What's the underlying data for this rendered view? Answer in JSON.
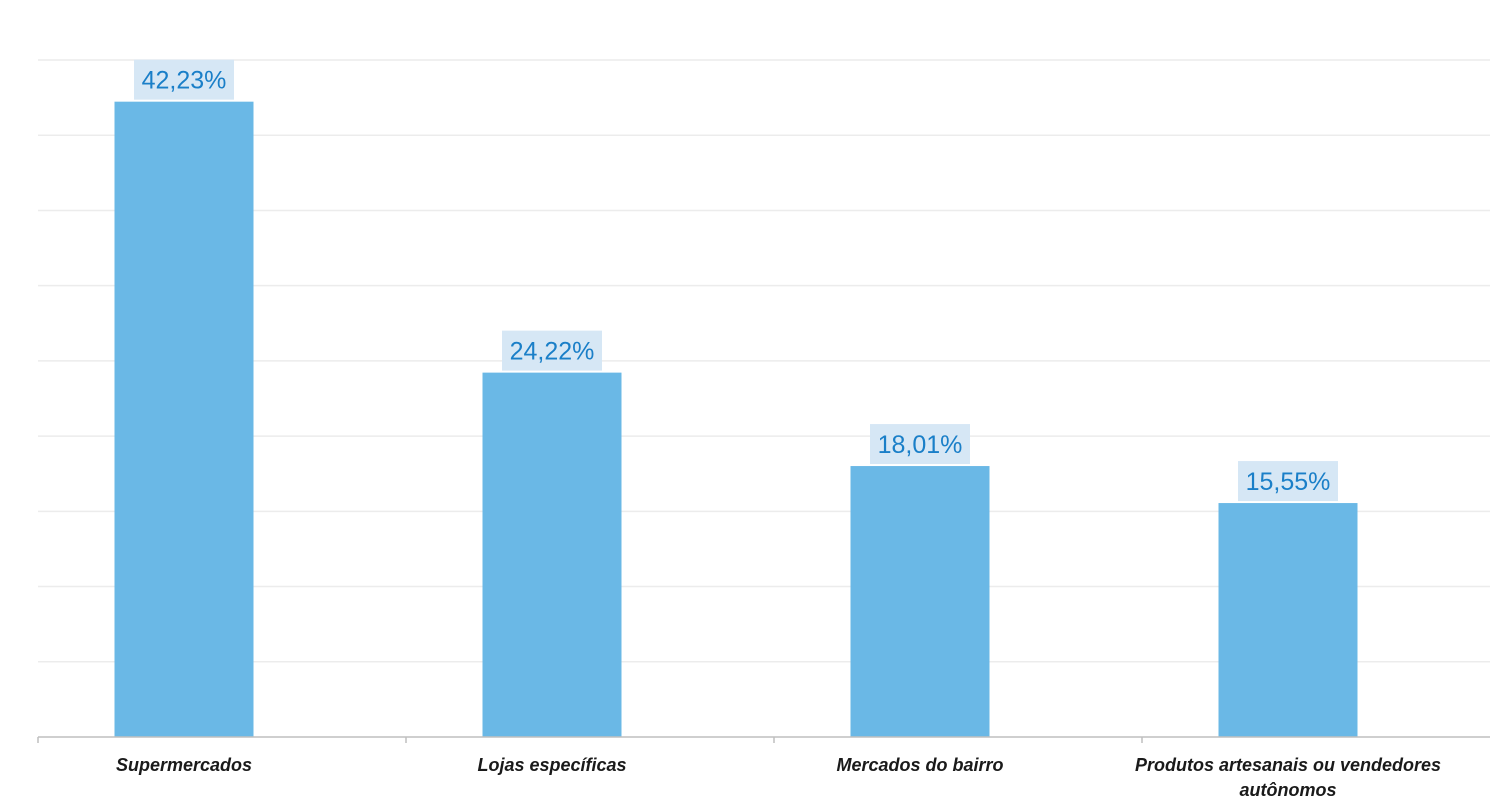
{
  "chart_data": {
    "type": "bar",
    "title": "",
    "xlabel": "",
    "ylabel": "",
    "categories": [
      "Supermercados",
      "Lojas específicas",
      "Mercados do bairro",
      "Produtos artesanais ou vendedores autônomos"
    ],
    "category_lines": [
      [
        "Supermercados"
      ],
      [
        "Lojas específicas"
      ],
      [
        "Mercados do bairro"
      ],
      [
        "Produtos artesanais ou vendedores",
        "autônomos"
      ]
    ],
    "values": [
      42.23,
      24.22,
      18.01,
      15.55
    ],
    "data_labels": [
      "42,23%",
      "24,22%",
      "18,01%",
      "15,55%"
    ],
    "ylim": [
      0,
      45
    ],
    "grid": true,
    "legend": "none",
    "colors": {
      "bar": "#6ab8e6",
      "label_text": "#1a7fc8",
      "label_box": "#d6e7f5",
      "gridline": "#ececec",
      "axis": "#bfbfbf"
    }
  }
}
